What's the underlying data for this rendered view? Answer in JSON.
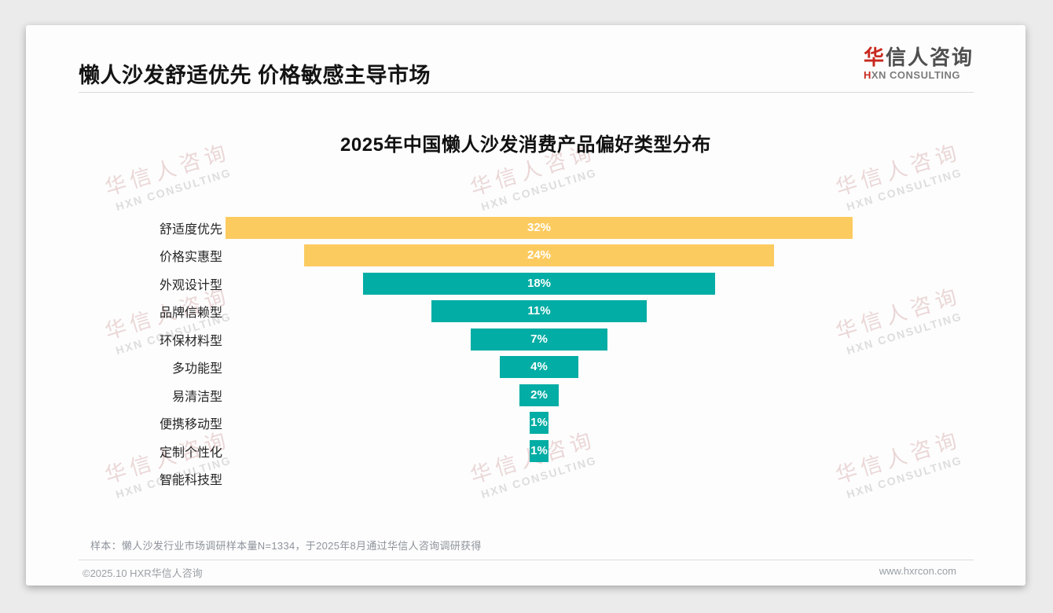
{
  "page": {
    "title": "懒人沙发舒适优先 价格敏感主导市场",
    "logo": {
      "zh_red": "华",
      "zh_rest": "信人咨询",
      "en_first": "H",
      "en_rest": "XN CONSULTING"
    },
    "note": "样本：懒人沙发行业市场调研样本量N=1334，于2025年8月通过华信人咨询调研获得",
    "footer": {
      "copyright": "©2025.10 HXR华信人咨询",
      "website": "www.hxrcon.com"
    }
  },
  "watermark": {
    "line1": "华信人咨询",
    "line2": "HXN CONSULTING"
  },
  "colors": {
    "bar_yellow": "#FCCB60",
    "bar_teal": "#01ADA4",
    "logo_red": "#C8281E",
    "value_text": "#FFFFFF"
  },
  "chart_data": {
    "type": "bar",
    "variant": "centered-funnel-horizontal",
    "title": "2025年中国懒人沙发消费产品偏好类型分布",
    "categories": [
      "舒适度优先",
      "价格实惠型",
      "外观设计型",
      "品牌信赖型",
      "环保材料型",
      "多功能型",
      "易清洁型",
      "便携移动型",
      "定制个性化",
      "智能科技型"
    ],
    "values": [
      32,
      24,
      18,
      11,
      7,
      4,
      2,
      1,
      1,
      0
    ],
    "value_labels": [
      "32%",
      "24%",
      "18%",
      "11%",
      "7%",
      "4%",
      "2%",
      "1%",
      "1%",
      ""
    ],
    "bar_colors": [
      "#FCCB60",
      "#FCCB60",
      "#01ADA4",
      "#01ADA4",
      "#01ADA4",
      "#01ADA4",
      "#01ADA4",
      "#01ADA4",
      "#01ADA4",
      "#01ADA4"
    ],
    "max_value_for_scale": 32,
    "xlabel": "",
    "ylabel": "",
    "grid": false,
    "legend": false,
    "value_label_position": "inside-center"
  }
}
